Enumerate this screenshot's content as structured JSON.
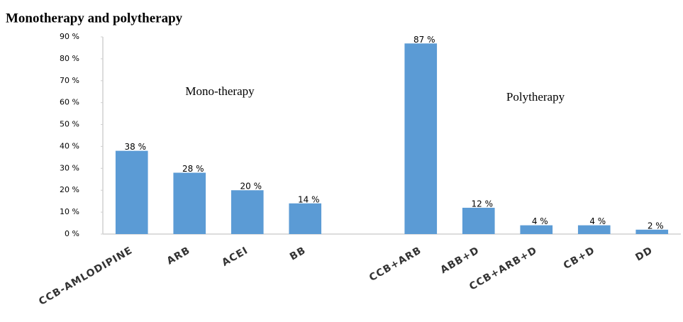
{
  "chart_data": {
    "type": "bar",
    "title": "Monotherapy and polytherapy",
    "annotations": [
      "Mono-therapy",
      "Polytherapy"
    ],
    "categories": [
      "CCB-AMLODIPINE",
      "ARB",
      "ACEI",
      "BB",
      null,
      "CCB+ARB",
      "ABB+D",
      "CCB+ARB+D",
      "CB+D",
      "DD"
    ],
    "values": [
      38,
      28,
      20,
      14,
      null,
      87,
      12,
      4,
      4,
      2
    ],
    "value_labels": [
      "38 %",
      "28 %",
      "20 %",
      "14 %",
      null,
      "87 %",
      "12 %",
      "4 %",
      "4 %",
      "2 %"
    ],
    "color": "#5b9bd5",
    "ylim": [
      0,
      90
    ],
    "yticks": [
      {
        "value": 0,
        "label": "0 %"
      },
      {
        "value": 10,
        "label": "10 %"
      },
      {
        "value": 20,
        "label": "20 %"
      },
      {
        "value": 30,
        "label": "30 %"
      },
      {
        "value": 40,
        "label": "40 %"
      },
      {
        "value": 50,
        "label": "50 %"
      },
      {
        "value": 60,
        "label": "60 %"
      },
      {
        "value": 70,
        "label": "70 %"
      },
      {
        "value": 80,
        "label": "80 %"
      },
      {
        "value": 90,
        "label": "90 %"
      }
    ],
    "grid": false
  }
}
